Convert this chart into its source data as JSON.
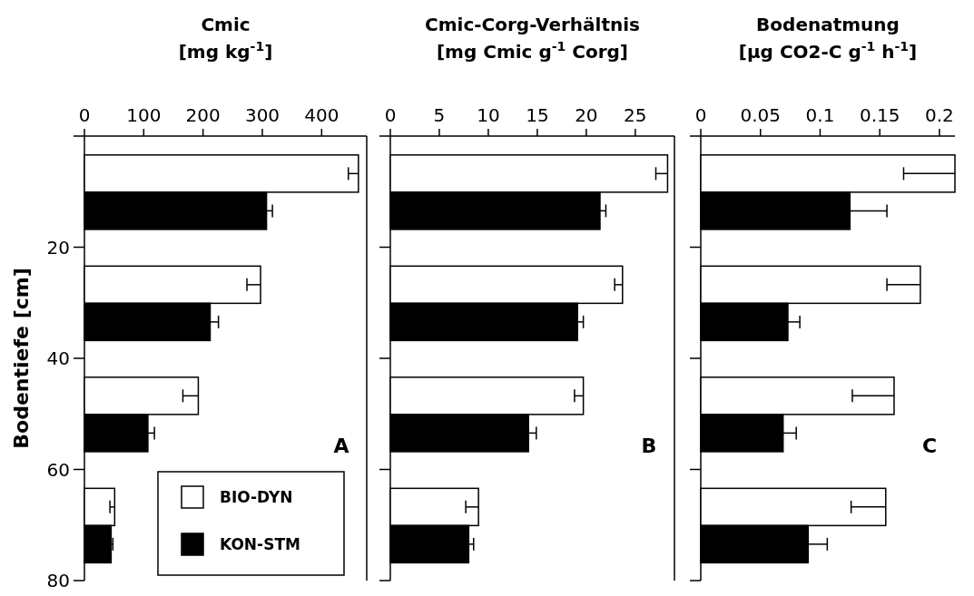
{
  "chart_data": [
    {
      "type": "bar",
      "orientation": "horizontal",
      "title": "Cmic",
      "subtitle": "[mg kg$^{-1}$]",
      "ylabel": "Bodentiefe [cm]",
      "xlim": [
        0,
        476
      ],
      "xticks": [
        0,
        100,
        200,
        300,
        400
      ],
      "ylim": [
        80,
        0
      ],
      "yticks": [
        20,
        40,
        60,
        80
      ],
      "grid": false,
      "legend": "bottom right",
      "annotations": [
        "A"
      ],
      "series": [
        {
          "name": "BIO-DYN",
          "color": "#ffffff",
          "x": [
            6.75,
            26.75,
            46.75,
            66.75
          ],
          "values": [
            462,
            297,
            192,
            51
          ],
          "errors": [
            [
              445,
              462
            ],
            [
              274,
              297
            ],
            [
              166,
              192
            ],
            [
              43,
              51
            ]
          ]
        },
        {
          "name": "KON-STM",
          "color": "#000000",
          "x": [
            13.45,
            33.45,
            53.45,
            73.45
          ],
          "values": [
            307,
            212,
            107,
            45
          ],
          "errors": [
            [
              307,
              317
            ],
            [
              212,
              226
            ],
            [
              107,
              118
            ],
            [
              45,
              48
            ]
          ]
        }
      ]
    },
    {
      "type": "bar",
      "orientation": "horizontal",
      "title": "Cmic-Corg-Verhältnis",
      "subtitle": "[mg Cmic g$^{-1}$ Corg]",
      "xlim": [
        0,
        29
      ],
      "xticks": [
        0,
        5,
        10,
        15,
        20,
        25
      ],
      "ylim": [
        80,
        0
      ],
      "yticks": [
        20,
        40,
        60,
        80
      ],
      "tick_labels": "x",
      "grid": false,
      "legend": false,
      "annotations": [
        "B"
      ],
      "series": [
        {
          "color": "#ffffff",
          "x": [
            6.75,
            26.75,
            46.75,
            66.75
          ],
          "values": [
            28.3,
            23.7,
            19.7,
            9.0
          ],
          "errors": [
            [
              27.1,
              28.3
            ],
            [
              22.9,
              23.7
            ],
            [
              18.8,
              19.7
            ],
            [
              7.7,
              9.0
            ]
          ]
        },
        {
          "color": "#000000",
          "x": [
            13.45,
            33.45,
            53.45,
            73.45
          ],
          "values": [
            21.4,
            19.1,
            14.1,
            8.0
          ],
          "errors": [
            [
              21.4,
              22.0
            ],
            [
              19.1,
              19.7
            ],
            [
              14.1,
              14.9
            ],
            [
              8.0,
              8.5
            ]
          ]
        }
      ]
    },
    {
      "type": "bar",
      "orientation": "horizontal",
      "title": "Bodenatmung",
      "subtitle": "[µg CO2-C g$^{-1}$ h$^{-1}$]",
      "xlim": [
        0,
        0.213
      ],
      "xticks": [
        0,
        0.05,
        0.1,
        0.15,
        0.2
      ],
      "ylim": [
        80,
        0
      ],
      "yticks": [
        20,
        40,
        60,
        80
      ],
      "tick_labels": "x",
      "grid": false,
      "legend": false,
      "annotations": [
        "C"
      ],
      "series": [
        {
          "color": "#ffffff",
          "x": [
            6.75,
            26.75,
            46.75,
            66.75
          ],
          "values": [
            0.213,
            0.184,
            0.162,
            0.155
          ],
          "errors": [
            [
              0.17,
              0.213
            ],
            [
              0.156,
              0.184
            ],
            [
              0.127,
              0.162
            ],
            [
              0.126,
              0.155
            ]
          ]
        },
        {
          "color": "#000000",
          "x": [
            13.45,
            33.45,
            53.45,
            73.45
          ],
          "values": [
            0.125,
            0.073,
            0.069,
            0.09
          ],
          "errors": [
            [
              0.125,
              0.156
            ],
            [
              0.073,
              0.083
            ],
            [
              0.069,
              0.08
            ],
            [
              0.09,
              0.106
            ]
          ]
        }
      ]
    }
  ]
}
